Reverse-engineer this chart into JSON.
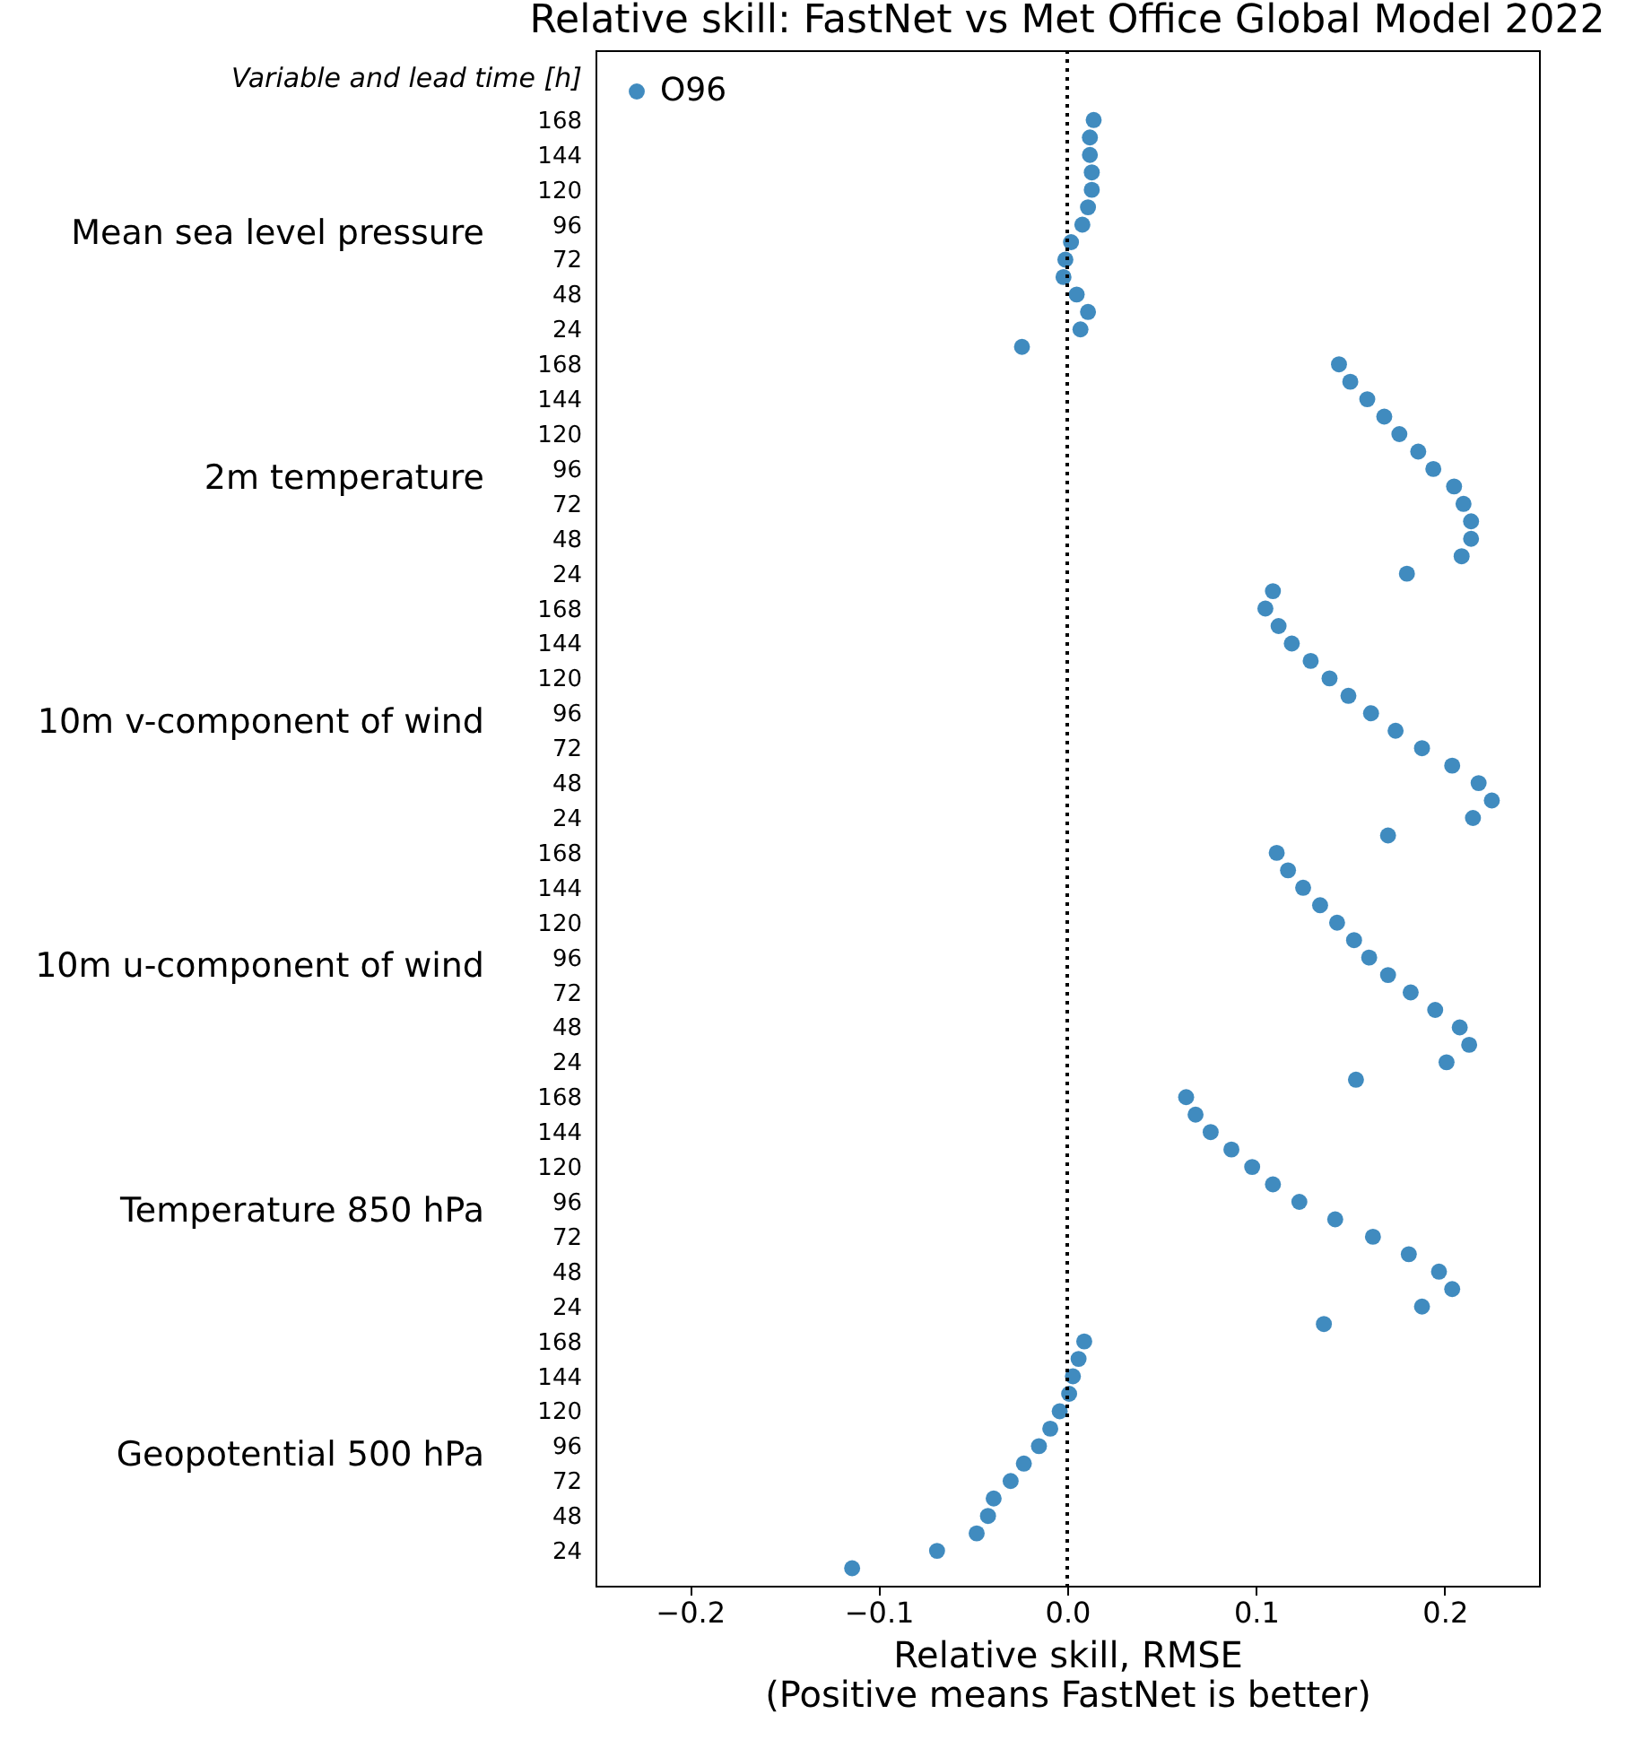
{
  "chart_data": {
    "type": "scatter",
    "orientation": "horizontal",
    "title": "Relative skill: FastNet vs Met Office Global Model 2022",
    "xlabel": "Relative skill, RMSE\n(Positive means FastNet is better)",
    "ylabel": "Variable and lead time [h]",
    "categories": [
      "168",
      null,
      "144",
      null,
      "120",
      null,
      "96",
      null,
      "72",
      null,
      "48",
      null,
      "24",
      null,
      "168",
      null,
      "144",
      null,
      "120",
      null,
      "96",
      null,
      "72",
      null,
      "48",
      null,
      "24",
      null,
      "168",
      null,
      "144",
      null,
      "120",
      null,
      "96",
      null,
      "72",
      null,
      "48",
      null,
      "24",
      null,
      "168",
      null,
      "144",
      null,
      "120",
      null,
      "96",
      null,
      "72",
      null,
      "48",
      null,
      "24",
      null,
      "168",
      null,
      "144",
      null,
      "120",
      null,
      "96",
      null,
      "72",
      null,
      "48",
      null,
      "24",
      null,
      "168",
      null,
      "144",
      null,
      "120",
      null,
      "96",
      null,
      "72",
      null,
      "48",
      null,
      "24",
      null
    ],
    "annotations": [
      "Mean sea level pressure",
      "2m temperature",
      "10m v-component of wind",
      "10m u-component of wind",
      "Temperature 850 hPa",
      "Geopotential 500 hPa"
    ],
    "series": [
      {
        "name": "O96",
        "color": "#1f77b4",
        "values": [
          0.014,
          0.012,
          0.012,
          0.013,
          0.013,
          0.011,
          0.008,
          0.002,
          -0.001,
          -0.002,
          0.005,
          0.011,
          0.007,
          -0.024,
          0.144,
          0.15,
          0.159,
          0.168,
          0.176,
          0.186,
          0.194,
          0.205,
          0.21,
          0.214,
          0.214,
          0.209,
          0.18,
          0.109,
          0.105,
          0.112,
          0.119,
          0.129,
          0.139,
          0.149,
          0.161,
          0.174,
          0.188,
          0.204,
          0.218,
          0.225,
          0.215,
          0.17,
          0.111,
          0.117,
          0.125,
          0.134,
          0.143,
          0.152,
          0.16,
          0.17,
          0.182,
          0.195,
          0.208,
          0.213,
          0.201,
          0.153,
          0.063,
          0.068,
          0.076,
          0.087,
          0.098,
          0.109,
          0.123,
          0.142,
          0.162,
          0.181,
          0.197,
          0.204,
          0.188,
          0.136,
          0.009,
          0.006,
          0.003,
          0.001,
          -0.004,
          -0.009,
          -0.015,
          -0.023,
          -0.03,
          -0.039,
          -0.042,
          -0.048,
          -0.069,
          -0.114
        ]
      }
    ],
    "xlim": [
      -0.25,
      0.25
    ],
    "xticks": [
      {
        "value": -0.2,
        "label": "−0.2"
      },
      {
        "value": -0.1,
        "label": "−0.1"
      },
      {
        "value": 0,
        "label": "0.0"
      },
      0.1,
      0.2
    ],
    "ref_lines": [
      {
        "axis": "x",
        "value": 0,
        "line_style": "dotted",
        "color": "#000000"
      }
    ],
    "marker": "circle",
    "legend": "top left",
    "grid": false
  }
}
